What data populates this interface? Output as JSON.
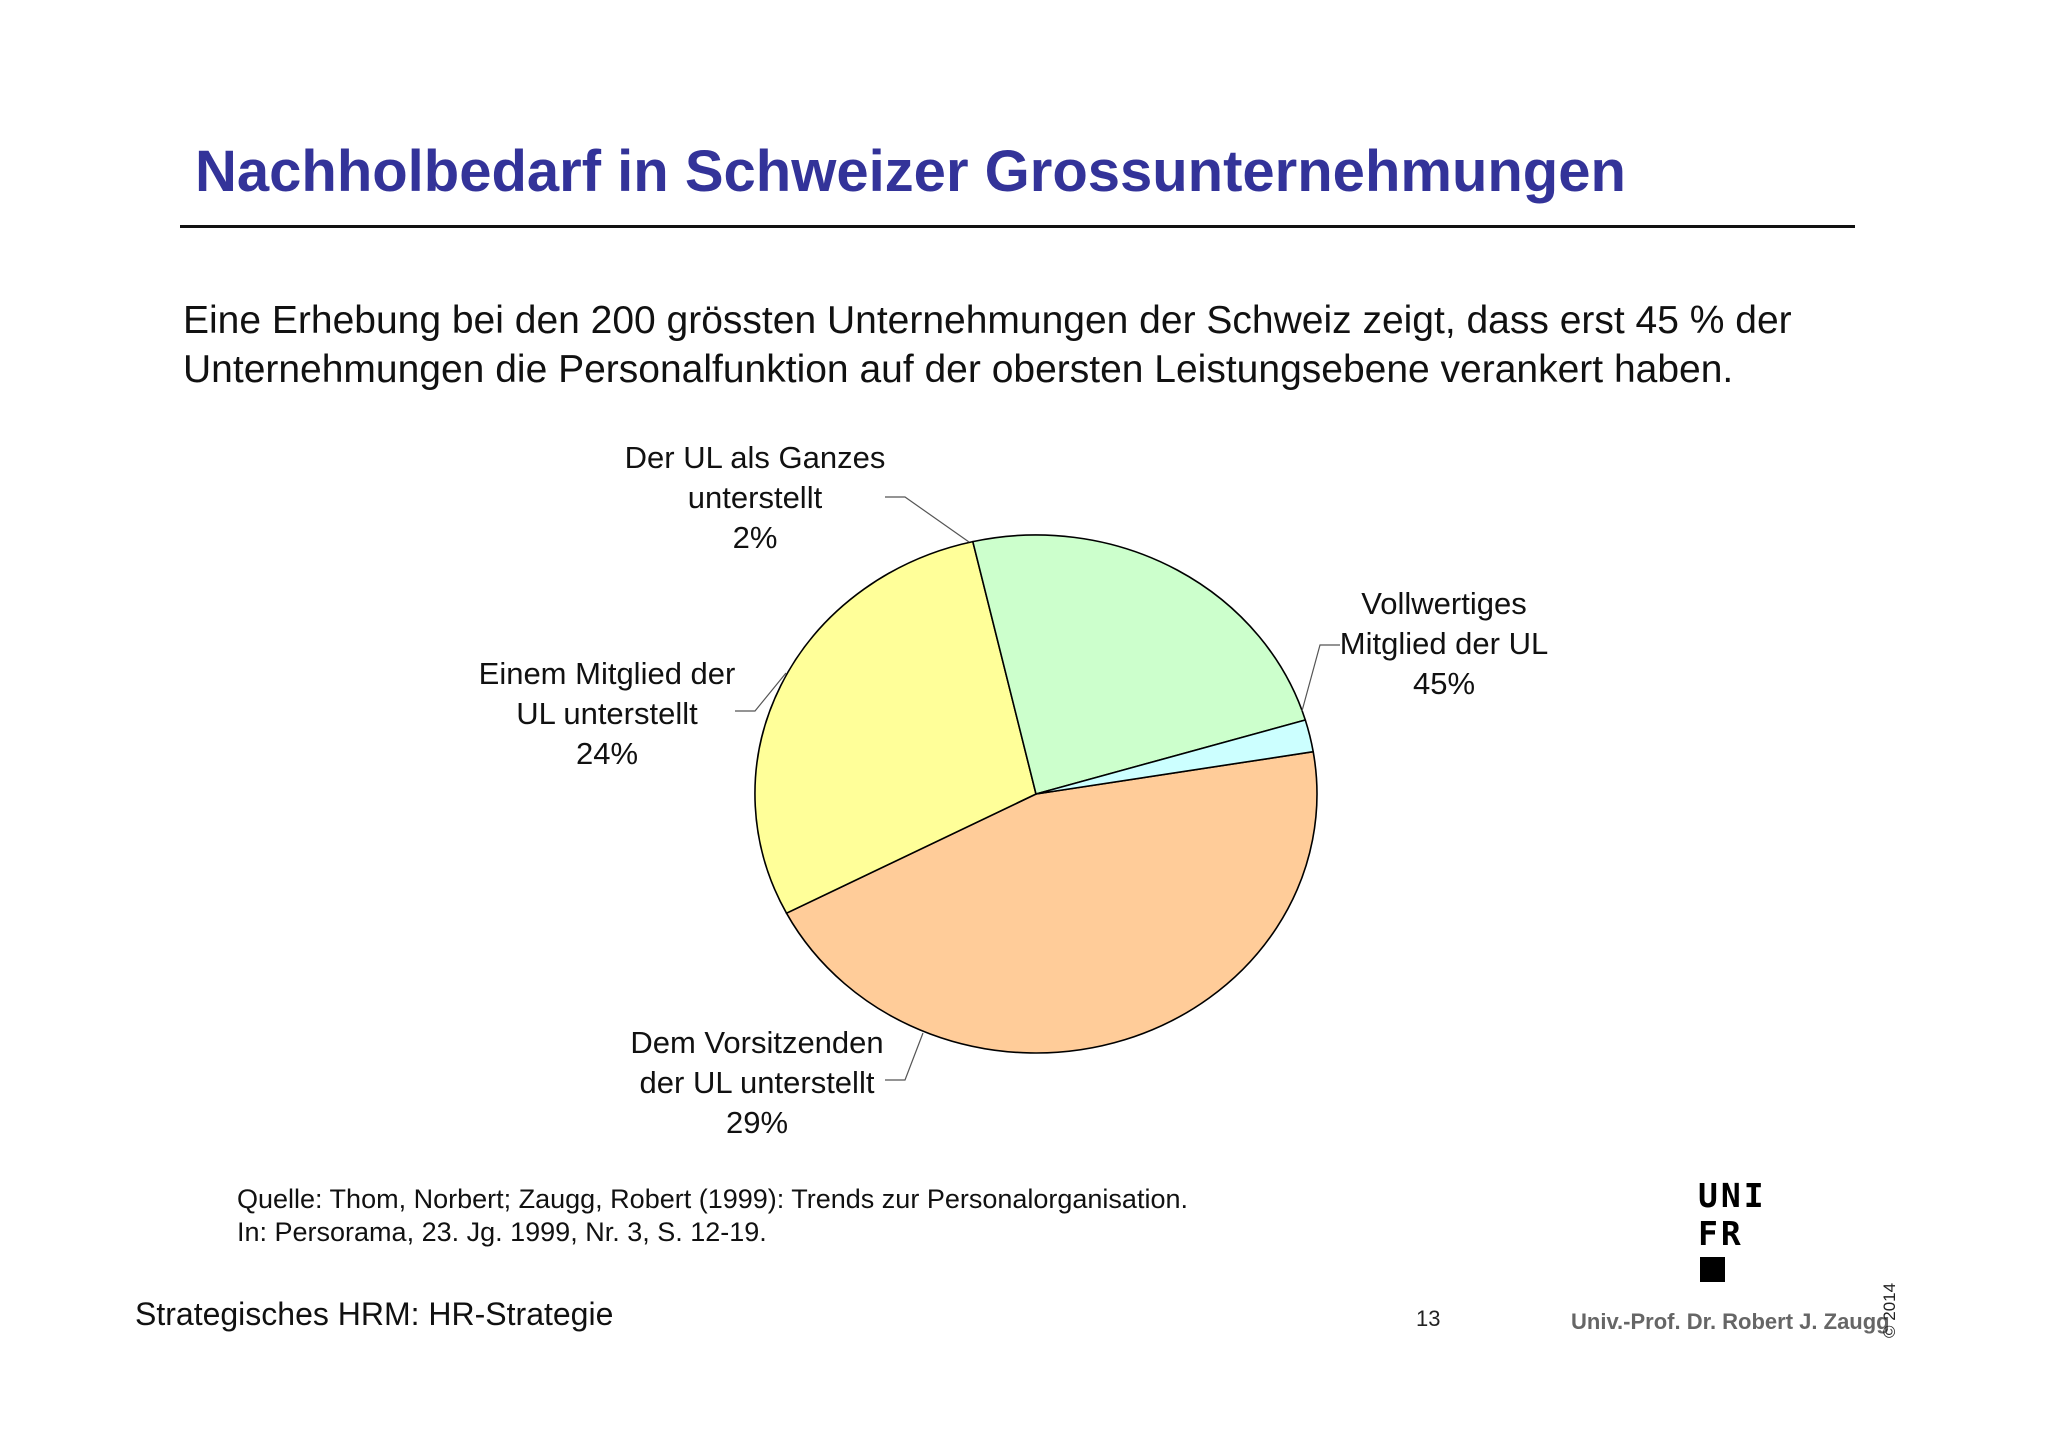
{
  "slide": {
    "title": "Nachholbedarf in Schweizer Grossunternehmungen",
    "intro_line1": "Eine Erhebung bei den 200 grössten Unternehmungen der Schweiz zeigt, dass erst 45 % der",
    "intro_line2": "Unternehmungen die Personalfunktion auf der obersten Leistungsebene verankert haben.",
    "source_line1": "Quelle: Thom, Norbert; Zaugg, Robert (1999): Trends zur Personalorganisation.",
    "source_line2": "In: Persorama, 23. Jg. 1999, Nr. 3, S. 12-19.",
    "footer_left": "Strategisches HRM: HR-Strategie",
    "page_number": "13",
    "author": "Univ.-Prof. Dr. Robert J. Zaugg",
    "copyright": "© 2014",
    "logo": {
      "line1": "UNI",
      "line2": "FR"
    }
  },
  "chart_data": {
    "type": "pie",
    "start_angle_deg": -9.4,
    "direction": "clockwise",
    "slices": [
      {
        "label_lines": [
          "Vollwertiges",
          "Mitglied der UL",
          "45%"
        ],
        "value": 45,
        "color": "#FFCC99"
      },
      {
        "label_lines": [
          "Dem Vorsitzenden",
          "der UL unterstellt",
          "29%"
        ],
        "value": 29,
        "color": "#FFFF99"
      },
      {
        "label_lines": [
          "Einem Mitglied der",
          "UL unterstellt",
          "24%"
        ],
        "value": 24,
        "color": "#CCFFCC"
      },
      {
        "label_lines": [
          "Der UL als Ganzes",
          "unterstellt",
          "2%"
        ],
        "value": 2,
        "color": "#CCFFFF"
      }
    ]
  }
}
